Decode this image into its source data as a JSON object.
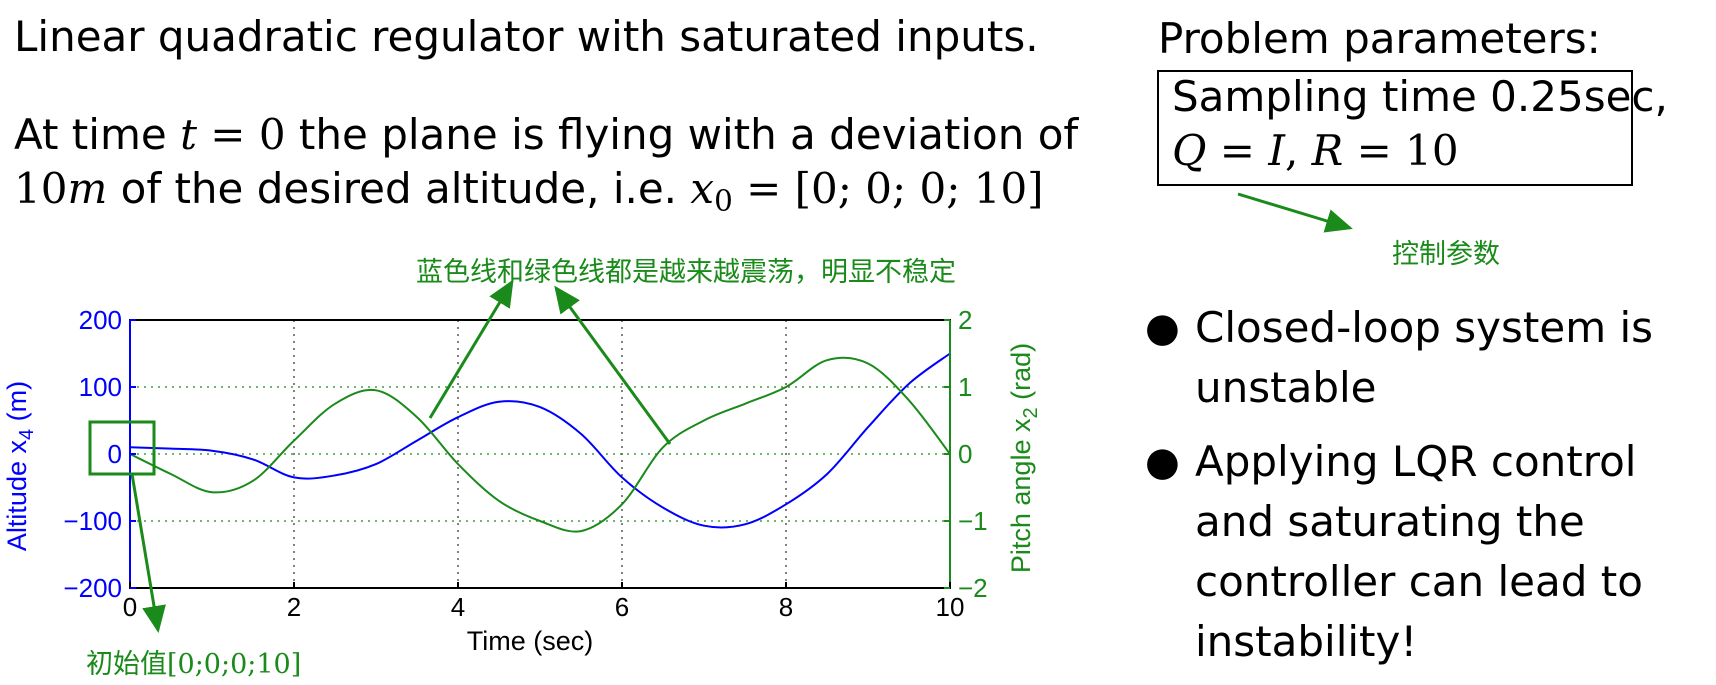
{
  "slide": {
    "title": "Linear quadratic regulator with saturated inputs.",
    "intro_line1_prefix": "At time ",
    "intro_t": "t",
    "intro_eq": " = 0",
    "intro_line1_suffix": " the plane is flying with a deviation of",
    "intro_line2_num": "10",
    "intro_line2_unit": "m",
    "intro_line2_text": " of the desired altitude, i.e. ",
    "intro_x": "x",
    "intro_x_sub": "0",
    "intro_line2_vector": " = [0; 0; 0; 10]"
  },
  "parameters": {
    "heading": "Problem parameters:",
    "line1": "Sampling time 0.25sec,",
    "q_sym": "Q",
    "q_eq": " = ",
    "q_val": "I",
    "sep": ", ",
    "r_sym": "R",
    "r_eq": " = 10"
  },
  "annotations": {
    "control_params": "控制参数",
    "oscillation": "蓝色线和绿色线都是越来越震荡，明显不稳定",
    "initial_value": "初始值[0;0;0;10]"
  },
  "bullets": [
    {
      "line1": "Closed-loop system is",
      "line2": "unstable"
    },
    {
      "line1": "Applying LQR control",
      "line2": "and saturating the",
      "line3": "controller can lead to",
      "line4": "instability!"
    }
  ],
  "colors": {
    "altitude": "#0000ff",
    "pitch": "#1a8a1a",
    "annotation": "#1a8a1a"
  },
  "chart_data": {
    "type": "line",
    "x": [
      0,
      0.5,
      1,
      1.5,
      2,
      2.5,
      3,
      3.5,
      4,
      4.5,
      5,
      5.5,
      6,
      6.5,
      7,
      7.5,
      8,
      8.5,
      9,
      9.5,
      10
    ],
    "xlabel": "Time (sec)",
    "ylabel_left": "Altitude x",
    "ylabel_left_sub": "4",
    "ylabel_left_unit": " (m)",
    "ylabel_right": "Pitch angle x",
    "ylabel_right_sub": "2",
    "ylabel_right_unit": " (rad)",
    "xlim": [
      0,
      10
    ],
    "ylim_left": [
      -200,
      200
    ],
    "ylim_right": [
      -2,
      2
    ],
    "xticks": [
      "0",
      "2",
      "4",
      "6",
      "8",
      "10"
    ],
    "yticks_left": [
      "200",
      "100",
      "0",
      "−100",
      "−200"
    ],
    "yticks_right": [
      "2",
      "1",
      "0",
      "−1",
      "−2"
    ],
    "grid": true,
    "series": [
      {
        "axis": "left",
        "values": [
          10,
          8,
          5,
          -8,
          -35,
          -32,
          -15,
          20,
          55,
          78,
          70,
          30,
          -35,
          -80,
          -107,
          -105,
          -75,
          -30,
          40,
          105,
          150
        ]
      },
      {
        "axis": "right",
        "values": [
          0,
          -0.3,
          -0.57,
          -0.4,
          0.2,
          0.75,
          0.95,
          0.55,
          -0.15,
          -0.7,
          -1.0,
          -1.15,
          -0.75,
          0.1,
          0.5,
          0.75,
          1.0,
          1.4,
          1.35,
          0.8,
          0.0
        ]
      }
    ]
  }
}
